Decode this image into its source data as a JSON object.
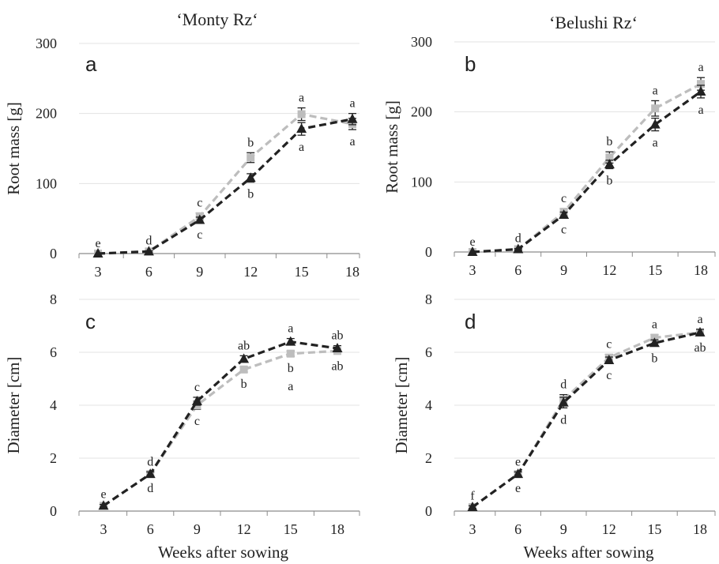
{
  "column_titles": [
    "‘Monty Rz‘",
    "‘Belushi Rz‘"
  ],
  "chart_data": [
    {
      "type": "line",
      "panel": "a",
      "title": "‘Monty Rz‘",
      "xlabel": "",
      "ylabel": "Root mass [g]",
      "x": [
        3,
        6,
        9,
        12,
        15,
        18
      ],
      "xlim": [
        3,
        18
      ],
      "ylim": [
        0,
        300
      ],
      "yticks": [
        0,
        100,
        200,
        300
      ],
      "grid": "horizontal",
      "series": [
        {
          "values": [
            0,
            3,
            53,
            137,
            199,
            185
          ],
          "err": [
            0,
            1,
            5,
            7,
            9,
            8
          ],
          "color": "#bdbdbd",
          "marker": "square",
          "labels": [
            "e",
            "d",
            "c",
            "b",
            "a",
            "a"
          ],
          "label_pos": [
            "above",
            "above",
            "above",
            "above",
            "above",
            "below"
          ]
        },
        {
          "values": [
            0,
            3,
            48,
            108,
            178,
            192
          ],
          "err": [
            0,
            1,
            4,
            6,
            9,
            8
          ],
          "color": "#222222",
          "marker": "triangle",
          "labels": [
            "e",
            "d",
            "c",
            "b",
            "a",
            "a"
          ],
          "label_pos": [
            "none",
            "none",
            "below",
            "below",
            "below",
            "above"
          ]
        }
      ]
    },
    {
      "type": "line",
      "panel": "b",
      "title": "‘Belushi Rz‘",
      "xlabel": "",
      "ylabel": "Root mass [g]",
      "x": [
        3,
        6,
        9,
        12,
        15,
        18
      ],
      "xlim": [
        3,
        18
      ],
      "ylim": [
        0,
        300
      ],
      "yticks": [
        0,
        100,
        200,
        300
      ],
      "grid": "horizontal",
      "series": [
        {
          "values": [
            0,
            4,
            57,
            135,
            205,
            240
          ],
          "err": [
            0,
            1,
            5,
            8,
            11,
            9
          ],
          "color": "#bdbdbd",
          "marker": "square",
          "labels": [
            "e",
            "d",
            "c",
            "b",
            "a",
            "a"
          ],
          "label_pos": [
            "above",
            "above",
            "above",
            "above",
            "above",
            "above"
          ]
        },
        {
          "values": [
            0,
            4,
            53,
            125,
            182,
            229
          ],
          "err": [
            0,
            1,
            4,
            6,
            9,
            9
          ],
          "color": "#222222",
          "marker": "triangle",
          "labels": [
            "e",
            "d",
            "c",
            "b",
            "a",
            "a"
          ],
          "label_pos": [
            "none",
            "none",
            "below",
            "below",
            "below",
            "below"
          ]
        }
      ]
    },
    {
      "type": "line",
      "panel": "c",
      "title": "",
      "xlabel": "Weeks after sowing",
      "ylabel": "Diameter [cm]",
      "x": [
        3,
        6,
        9,
        12,
        15,
        18
      ],
      "xlim": [
        3,
        18
      ],
      "ylim": [
        0,
        8
      ],
      "yticks": [
        0,
        2,
        4,
        6,
        8
      ],
      "grid": "horizontal",
      "series": [
        {
          "values": [
            0.2,
            1.4,
            4.0,
            5.35,
            5.95,
            6.05
          ],
          "err": [
            0.05,
            0.08,
            0.15,
            0.1,
            0.1,
            0.12
          ],
          "color": "#bdbdbd",
          "marker": "square",
          "labels": [
            "e",
            "d",
            "c",
            "b",
            "b",
            "ab"
          ],
          "label_pos": [
            "above",
            "below",
            "below",
            "below",
            "below",
            "below"
          ]
        },
        {
          "values": [
            0.2,
            1.4,
            4.15,
            5.75,
            6.4,
            6.15
          ],
          "err": [
            0.05,
            0.08,
            0.15,
            0.12,
            0.12,
            0.1
          ],
          "color": "#222222",
          "marker": "triangle",
          "labels": [
            "e",
            "d",
            "c",
            "ab",
            "a",
            "ab"
          ],
          "label_pos": [
            "none",
            "above",
            "above",
            "above",
            "above",
            "above"
          ]
        }
      ],
      "extra_labels": [
        {
          "x": 15,
          "y": 5.35,
          "text": "a"
        }
      ]
    },
    {
      "type": "line",
      "panel": "d",
      "title": "",
      "xlabel": "Weeks after sowing",
      "ylabel": "Diameter [cm]",
      "x": [
        3,
        6,
        9,
        12,
        15,
        18
      ],
      "xlim": [
        3,
        18
      ],
      "ylim": [
        0,
        8
      ],
      "yticks": [
        0,
        2,
        4,
        6,
        8
      ],
      "grid": "horizontal",
      "series": [
        {
          "values": [
            0.15,
            1.4,
            4.2,
            5.8,
            6.55,
            6.75
          ],
          "err": [
            0.05,
            0.08,
            0.2,
            0.12,
            0.12,
            0.12
          ],
          "color": "#bdbdbd",
          "marker": "square",
          "labels": [
            "f",
            "e",
            "d",
            "c",
            "a",
            "a"
          ],
          "label_pos": [
            "above",
            "above",
            "above",
            "above",
            "above",
            "above"
          ]
        },
        {
          "values": [
            0.15,
            1.4,
            4.1,
            5.7,
            6.35,
            6.75
          ],
          "err": [
            0.05,
            0.08,
            0.2,
            0.12,
            0.12,
            0.12
          ],
          "color": "#222222",
          "marker": "triangle",
          "labels": [
            "f",
            "e",
            "d",
            "c",
            "b",
            "ab"
          ],
          "label_pos": [
            "none",
            "below",
            "below",
            "below",
            "below",
            "below"
          ]
        }
      ]
    }
  ]
}
